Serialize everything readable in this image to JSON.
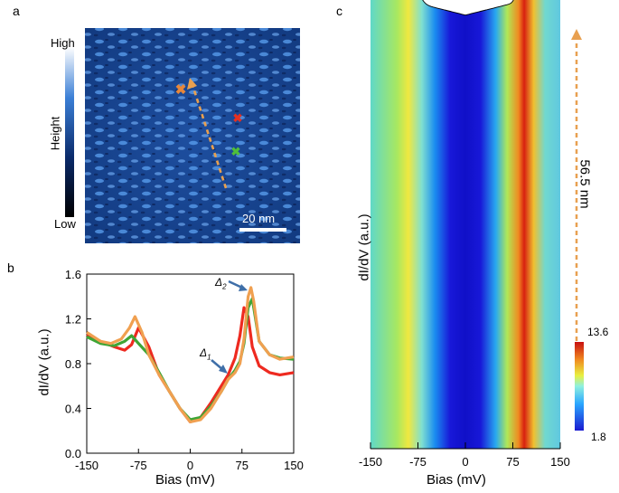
{
  "panel_a": {
    "label": "a",
    "colorbar_high": "High",
    "colorbar_low": "Low",
    "colorbar_title": "Height",
    "scale_bar": "20 nm"
  },
  "panel_b": {
    "label": "b"
  },
  "panel_c": {
    "label": "c",
    "length_label": "56.5 nm",
    "colorbar_max": "13.6",
    "colorbar_min": "1.8"
  },
  "colors": {
    "orange": "#F0A050",
    "red": "#EE2A20",
    "green": "#3FA535",
    "arrow_blue": "#3F6FA8",
    "marker_orange": "#E8873A",
    "marker_red": "#E53020",
    "marker_green": "#4FBE3A"
  },
  "chart_data": [
    {
      "type": "line",
      "id": "panel_b",
      "title": "",
      "xlabel": "Bias (mV)",
      "ylabel": "dI/dV (a.u.)",
      "xlim": [
        -150,
        150
      ],
      "ylim": [
        0,
        1.6
      ],
      "xticks": [
        -150,
        -75,
        0,
        75,
        150
      ],
      "xtick_labels": [
        "-150",
        "-75",
        "0",
        "75",
        "150"
      ],
      "yticks": [
        0,
        0.4,
        0.8,
        1.2,
        1.6
      ],
      "ytick_labels": [
        "0.0",
        "0.4",
        "0.8",
        "1.2",
        "1.6"
      ],
      "annotations": [
        {
          "text": "Δ1",
          "x": 50,
          "y": 0.7
        },
        {
          "text": "Δ2",
          "x": 88,
          "y": 1.46
        }
      ],
      "series": [
        {
          "name": "red",
          "color": "#EE2A20",
          "x": [
            -150,
            -130,
            -110,
            -95,
            -85,
            -75,
            -60,
            -45,
            -30,
            -15,
            0,
            15,
            30,
            45,
            55,
            65,
            72,
            78,
            84,
            90,
            100,
            115,
            130,
            150
          ],
          "y": [
            1.06,
            1.0,
            0.95,
            0.92,
            0.97,
            1.12,
            0.95,
            0.7,
            0.55,
            0.4,
            0.28,
            0.32,
            0.45,
            0.6,
            0.7,
            0.85,
            1.05,
            1.3,
            1.22,
            0.95,
            0.78,
            0.72,
            0.7,
            0.72
          ]
        },
        {
          "name": "green",
          "color": "#3FA535",
          "x": [
            -150,
            -130,
            -110,
            -95,
            -85,
            -75,
            -60,
            -45,
            -30,
            -15,
            0,
            15,
            30,
            45,
            55,
            65,
            72,
            78,
            84,
            90,
            100,
            115,
            130,
            150
          ],
          "y": [
            1.04,
            0.98,
            0.96,
            1.0,
            1.05,
            0.98,
            0.88,
            0.72,
            0.55,
            0.4,
            0.3,
            0.32,
            0.42,
            0.55,
            0.66,
            0.74,
            0.82,
            0.98,
            1.3,
            1.38,
            1.0,
            0.88,
            0.85,
            0.84
          ]
        },
        {
          "name": "orange",
          "color": "#F0A050",
          "x": [
            -150,
            -130,
            -115,
            -100,
            -88,
            -80,
            -70,
            -60,
            -45,
            -30,
            -15,
            0,
            15,
            30,
            45,
            55,
            65,
            72,
            78,
            84,
            88,
            92,
            100,
            115,
            130,
            150
          ],
          "y": [
            1.08,
            1.0,
            0.98,
            1.02,
            1.12,
            1.22,
            1.08,
            0.88,
            0.7,
            0.55,
            0.4,
            0.28,
            0.3,
            0.4,
            0.55,
            0.66,
            0.72,
            0.8,
            1.02,
            1.4,
            1.48,
            1.36,
            1.0,
            0.88,
            0.84,
            0.86
          ]
        }
      ]
    },
    {
      "type": "line",
      "id": "panel_c",
      "title": "",
      "xlabel": "Bias (mV)",
      "ylabel": "dI/dV (a.u.)",
      "xlim": [
        -150,
        150
      ],
      "xticks": [
        -150,
        -75,
        0,
        75,
        150
      ],
      "xtick_labels": [
        "-150",
        "-75",
        "0",
        "75",
        "150"
      ],
      "colorbar_range": [
        1.8,
        13.6
      ],
      "num_spectra": 26,
      "spatial_span_nm": 56.5,
      "description_x_peaks_mV": [
        -80,
        90
      ]
    }
  ]
}
